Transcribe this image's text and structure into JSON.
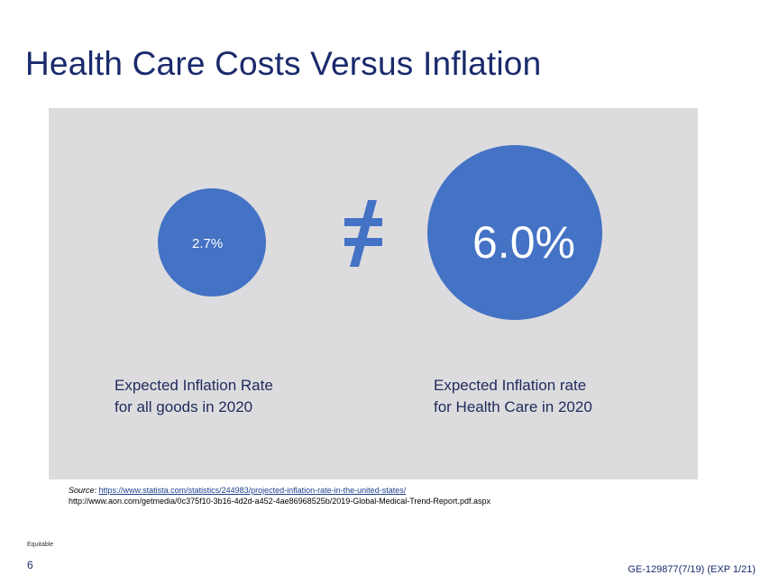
{
  "slide": {
    "title": "Health Care Costs Versus Inflation"
  },
  "colors": {
    "title": "#1a2a6c",
    "panel": "#dcdcdf",
    "circle": "#4472c4",
    "label": "#1f2a5a"
  },
  "comparison": {
    "left": {
      "value": "2.7%",
      "label_line1": "Expected Inflation Rate",
      "label_line2": "for all goods in 2020"
    },
    "symbol_icon": "not-equal-icon",
    "right": {
      "value": "6.0%",
      "label_line1": "Expected Inflation rate",
      "label_line2": "for Health Care in 2020"
    }
  },
  "source": {
    "prefix": "Source:",
    "link": "https://www.statista.com/statistics/244983/projected-inflation-rate-in-the-united-states/",
    "line2": "http://www.aon.com/getmedia/0c375f10-3b16-4d2d-a452-4ae86968525b/2019-Global-Medical-Trend-Report.pdf.aspx"
  },
  "footer": {
    "brand": "Equitable",
    "page_number": "6",
    "doc_code": "GE-129877(7/19) (EXP 1/21)"
  }
}
